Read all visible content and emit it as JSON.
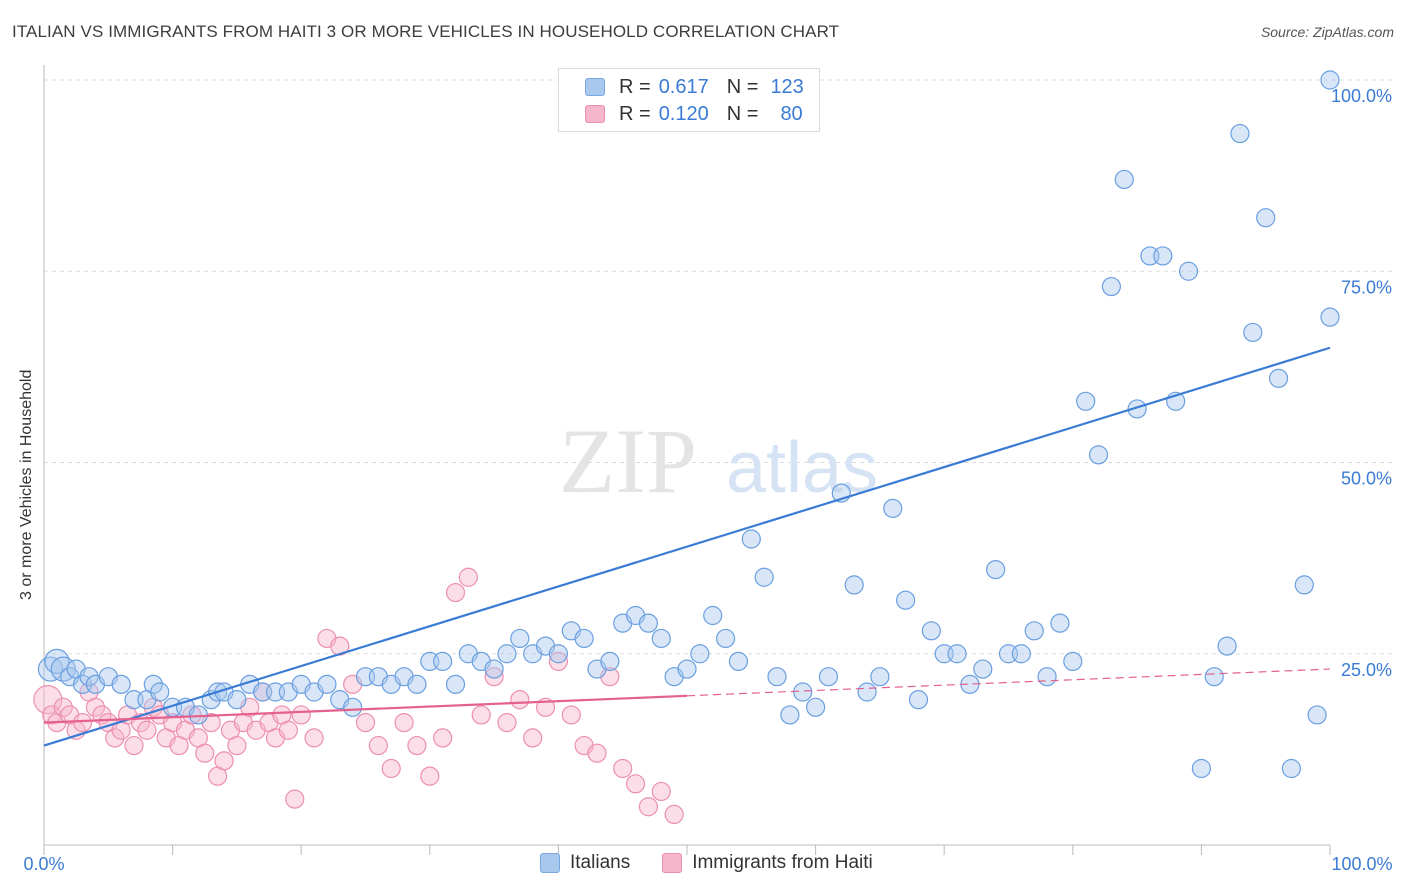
{
  "title": "ITALIAN VS IMMIGRANTS FROM HAITI 3 OR MORE VEHICLES IN HOUSEHOLD CORRELATION CHART",
  "source": "Source: ZipAtlas.com",
  "watermark": {
    "zip": "ZIP",
    "atlas": "atlas"
  },
  "legend": {
    "rows": [
      {
        "r_label": "R =",
        "r_value": "0.617",
        "n_label": "N =",
        "n_value": "123",
        "color": "#a9c8ee"
      },
      {
        "r_label": "R =",
        "r_value": "0.120",
        "n_label": "N =",
        "n_value": "80",
        "color": "#f6b6cb"
      }
    ]
  },
  "bottom_legend": {
    "italians": "Italians",
    "haiti": "Immigrants from Haiti"
  },
  "colors": {
    "blue": "#3a7bd5",
    "blue_fill": "#a9c8ee",
    "pink": "#e4608e",
    "pink_fill": "#f6b6cb",
    "grid": "#dddddd",
    "axis_text": "#3a7bd5"
  },
  "chart_data": {
    "type": "scatter",
    "title": "ITALIAN VS IMMIGRANTS FROM HAITI 3 OR MORE VEHICLES IN HOUSEHOLD CORRELATION CHART",
    "xlabel": "",
    "ylabel": "3 or more Vehicles in Household",
    "xlim": [
      0,
      100
    ],
    "ylim": [
      0,
      100
    ],
    "x_tick_labels": [
      "0.0%",
      "100.0%"
    ],
    "y_tick_labels": [
      "25.0%",
      "50.0%",
      "75.0%",
      "100.0%"
    ],
    "y_ticks": [
      25,
      50,
      75,
      100
    ],
    "grid": true,
    "legend_position": "top-center",
    "series": [
      {
        "name": "Italians",
        "color": "#3a7bd5",
        "trend": {
          "x": [
            0,
            100
          ],
          "y": [
            13,
            65
          ]
        },
        "points": [
          [
            0.5,
            23
          ],
          [
            1,
            24
          ],
          [
            1.5,
            23
          ],
          [
            2,
            22
          ],
          [
            2.5,
            23
          ],
          [
            3,
            21
          ],
          [
            3.5,
            22
          ],
          [
            4,
            21
          ],
          [
            5,
            22
          ],
          [
            6,
            21
          ],
          [
            7,
            19
          ],
          [
            8,
            19
          ],
          [
            8.5,
            21
          ],
          [
            9,
            20
          ],
          [
            10,
            18
          ],
          [
            11,
            18
          ],
          [
            12,
            17
          ],
          [
            13,
            19
          ],
          [
            13.5,
            20
          ],
          [
            14,
            20
          ],
          [
            15,
            19
          ],
          [
            16,
            21
          ],
          [
            17,
            20
          ],
          [
            18,
            20
          ],
          [
            19,
            20
          ],
          [
            20,
            21
          ],
          [
            21,
            20
          ],
          [
            22,
            21
          ],
          [
            23,
            19
          ],
          [
            24,
            18
          ],
          [
            25,
            22
          ],
          [
            26,
            22
          ],
          [
            27,
            21
          ],
          [
            28,
            22
          ],
          [
            29,
            21
          ],
          [
            30,
            24
          ],
          [
            31,
            24
          ],
          [
            32,
            21
          ],
          [
            33,
            25
          ],
          [
            34,
            24
          ],
          [
            35,
            23
          ],
          [
            36,
            25
          ],
          [
            37,
            27
          ],
          [
            38,
            25
          ],
          [
            39,
            26
          ],
          [
            40,
            25
          ],
          [
            41,
            28
          ],
          [
            42,
            27
          ],
          [
            43,
            23
          ],
          [
            44,
            24
          ],
          [
            45,
            29
          ],
          [
            46,
            30
          ],
          [
            47,
            29
          ],
          [
            48,
            27
          ],
          [
            49,
            22
          ],
          [
            50,
            23
          ],
          [
            51,
            25
          ],
          [
            52,
            30
          ],
          [
            53,
            27
          ],
          [
            54,
            24
          ],
          [
            55,
            40
          ],
          [
            56,
            35
          ],
          [
            57,
            22
          ],
          [
            58,
            17
          ],
          [
            59,
            20
          ],
          [
            60,
            18
          ],
          [
            61,
            22
          ],
          [
            62,
            46
          ],
          [
            63,
            34
          ],
          [
            64,
            20
          ],
          [
            65,
            22
          ],
          [
            66,
            44
          ],
          [
            67,
            32
          ],
          [
            68,
            19
          ],
          [
            69,
            28
          ],
          [
            70,
            25
          ],
          [
            71,
            25
          ],
          [
            72,
            21
          ],
          [
            73,
            23
          ],
          [
            74,
            36
          ],
          [
            75,
            25
          ],
          [
            76,
            25
          ],
          [
            77,
            28
          ],
          [
            78,
            22
          ],
          [
            79,
            29
          ],
          [
            80,
            24
          ],
          [
            81,
            58
          ],
          [
            82,
            51
          ],
          [
            83,
            73
          ],
          [
            84,
            87
          ],
          [
            85,
            57
          ],
          [
            86,
            77
          ],
          [
            87,
            77
          ],
          [
            88,
            58
          ],
          [
            89,
            75
          ],
          [
            90,
            10
          ],
          [
            91,
            22
          ],
          [
            92,
            26
          ],
          [
            93,
            93
          ],
          [
            94,
            67
          ],
          [
            95,
            82
          ],
          [
            96,
            61
          ],
          [
            97,
            10
          ],
          [
            98,
            34
          ],
          [
            99,
            17
          ],
          [
            100,
            69
          ],
          [
            100,
            100
          ]
        ]
      },
      {
        "name": "Immigrants from Haiti",
        "color": "#e4608e",
        "trend": {
          "x": [
            0,
            50,
            100
          ],
          "y": [
            16,
            19.5,
            23
          ]
        },
        "points": [
          [
            0.3,
            19
          ],
          [
            0.6,
            17
          ],
          [
            1,
            16
          ],
          [
            1.5,
            18
          ],
          [
            2,
            17
          ],
          [
            2.5,
            15
          ],
          [
            3,
            16
          ],
          [
            3.5,
            20
          ],
          [
            4,
            18
          ],
          [
            4.5,
            17
          ],
          [
            5,
            16
          ],
          [
            5.5,
            14
          ],
          [
            6,
            15
          ],
          [
            6.5,
            17
          ],
          [
            7,
            13
          ],
          [
            7.5,
            16
          ],
          [
            8,
            15
          ],
          [
            8.5,
            18
          ],
          [
            9,
            17
          ],
          [
            9.5,
            14
          ],
          [
            10,
            16
          ],
          [
            10.5,
            13
          ],
          [
            11,
            15
          ],
          [
            11.5,
            17
          ],
          [
            12,
            14
          ],
          [
            12.5,
            12
          ],
          [
            13,
            16
          ],
          [
            13.5,
            9
          ],
          [
            14,
            11
          ],
          [
            14.5,
            15
          ],
          [
            15,
            13
          ],
          [
            15.5,
            16
          ],
          [
            16,
            18
          ],
          [
            16.5,
            15
          ],
          [
            17,
            20
          ],
          [
            17.5,
            16
          ],
          [
            18,
            14
          ],
          [
            18.5,
            17
          ],
          [
            19,
            15
          ],
          [
            19.5,
            6
          ],
          [
            20,
            17
          ],
          [
            21,
            14
          ],
          [
            22,
            27
          ],
          [
            23,
            26
          ],
          [
            24,
            21
          ],
          [
            25,
            16
          ],
          [
            26,
            13
          ],
          [
            27,
            10
          ],
          [
            28,
            16
          ],
          [
            29,
            13
          ],
          [
            30,
            9
          ],
          [
            31,
            14
          ],
          [
            32,
            33
          ],
          [
            33,
            35
          ],
          [
            34,
            17
          ],
          [
            35,
            22
          ],
          [
            36,
            16
          ],
          [
            37,
            19
          ],
          [
            38,
            14
          ],
          [
            39,
            18
          ],
          [
            40,
            24
          ],
          [
            41,
            17
          ],
          [
            42,
            13
          ],
          [
            43,
            12
          ],
          [
            44,
            22
          ],
          [
            45,
            10
          ],
          [
            46,
            8
          ],
          [
            47,
            5
          ],
          [
            48,
            7
          ],
          [
            49,
            4
          ]
        ]
      }
    ]
  }
}
